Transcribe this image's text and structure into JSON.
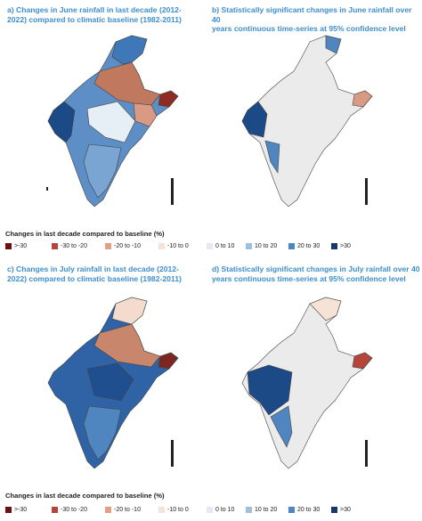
{
  "panels": {
    "a": {
      "title_line1": "a) Changes in June rainfall in last decade (2012-",
      "title_line2": "2022) compared to climatic baseline (1982-2011)"
    },
    "b": {
      "title_line1": "b) Statistically significant changes in June rainfall over 40",
      "title_line2": "years continuous time-series at 95% confidence level"
    },
    "c": {
      "title_line1": "c) Changes in July rainfall in last decade (2012-",
      "title_line2": "2022) compared to climatic baseline (1982-2011)"
    },
    "d": {
      "title_line1": "d) Statistically significant changes in July rainfall over 40",
      "title_line2": "years continuous time-series at 95% confidence level"
    }
  },
  "legend": {
    "title": "Changes in last decade compared to baseline (%)",
    "items": [
      {
        "label": ">-30",
        "color": "#6b0f0f"
      },
      {
        "label": "-30 to -20",
        "color": "#b5453a"
      },
      {
        "label": "-20 to -10",
        "color": "#e0a085"
      },
      {
        "label": "-10 to 0",
        "color": "#f6e3d6"
      },
      {
        "label": "0 to 10",
        "color": "#e4eaf2"
      },
      {
        "label": "10 to 20",
        "color": "#9fbfdd"
      },
      {
        "label": "20 to 30",
        "color": "#4f86c0"
      },
      {
        "label": ">30",
        "color": "#15386e"
      }
    ]
  },
  "colors": {
    "title_blue": "#3d8fd1",
    "border": "#444444",
    "nonsignificant_fill": "#ebebeb"
  }
}
